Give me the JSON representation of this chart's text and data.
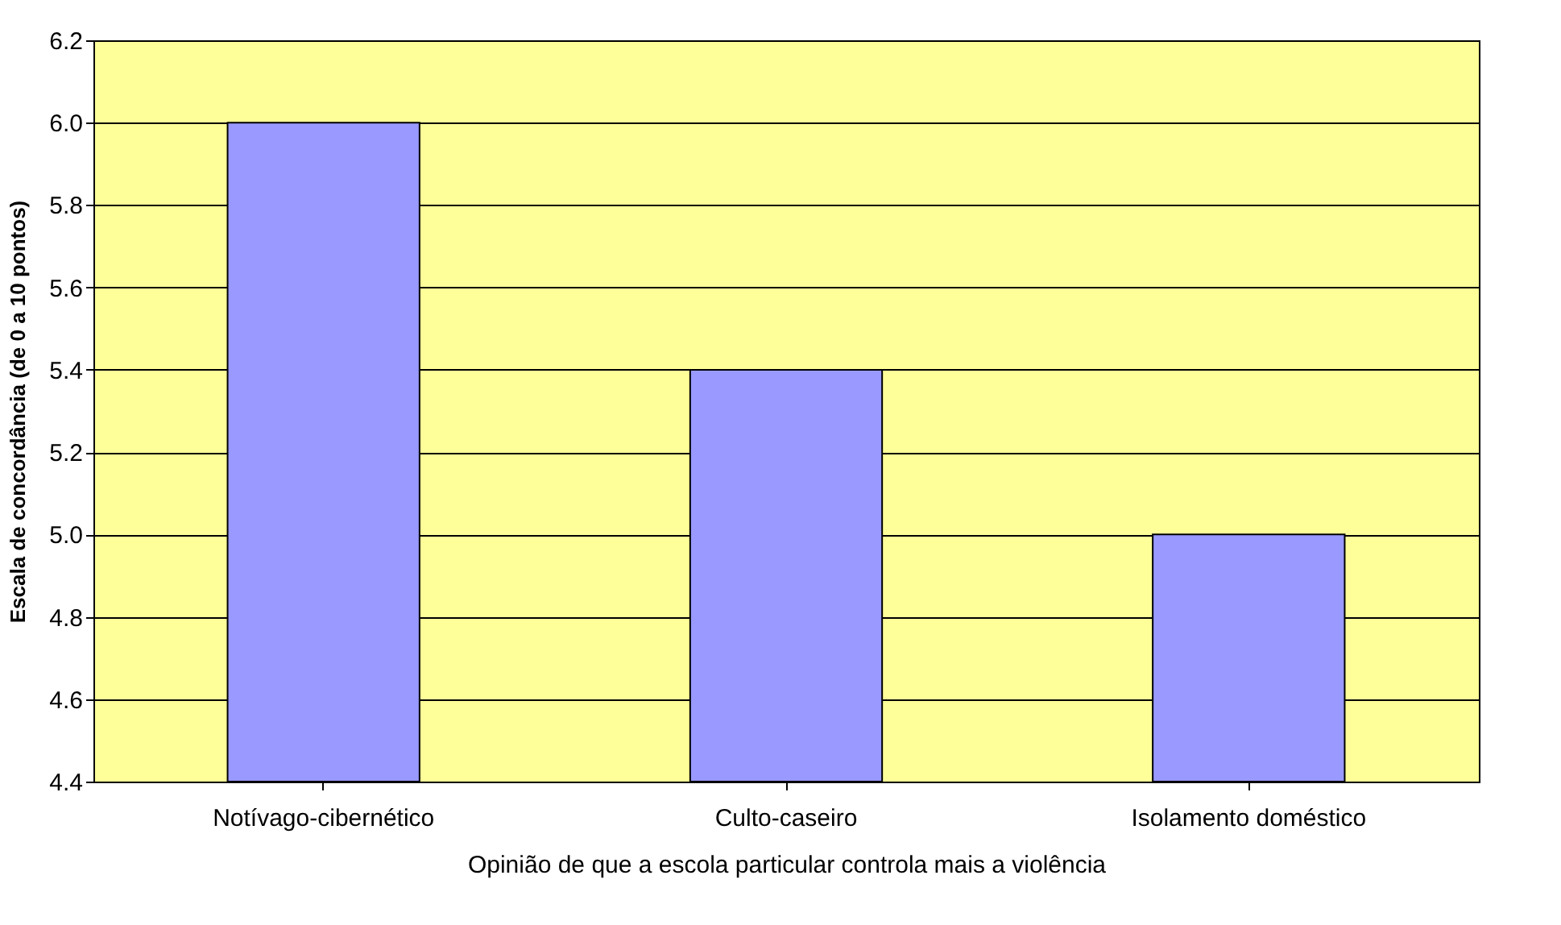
{
  "chart_data": {
    "type": "bar",
    "xlabel": "Opinião de que a escola particular controla mais a violência",
    "ylabel": "Escala de concordância (de 0 a 10 pontos)",
    "categories": [
      "Notívago-cibernético",
      "Culto-caseiro",
      "Isolamento doméstico"
    ],
    "values": [
      6.0,
      5.4,
      5.0
    ],
    "color": "#9999ff",
    "ylim": [
      4.4,
      6.2
    ],
    "yticks": [
      {
        "value": 4.4,
        "label": "4.4"
      },
      {
        "value": 4.6,
        "label": "4.6"
      },
      {
        "value": 4.8,
        "label": "4.8"
      },
      {
        "value": 5.0,
        "label": "5.0"
      },
      {
        "value": 5.2,
        "label": "5.2"
      },
      {
        "value": 5.4,
        "label": "5.4"
      },
      {
        "value": 5.6,
        "label": "5.6"
      },
      {
        "value": 5.8,
        "label": "5.8"
      },
      {
        "value": 6.0,
        "label": "6.0"
      },
      {
        "value": 6.2,
        "label": "6.2"
      }
    ],
    "grid": "y",
    "legend": false
  }
}
